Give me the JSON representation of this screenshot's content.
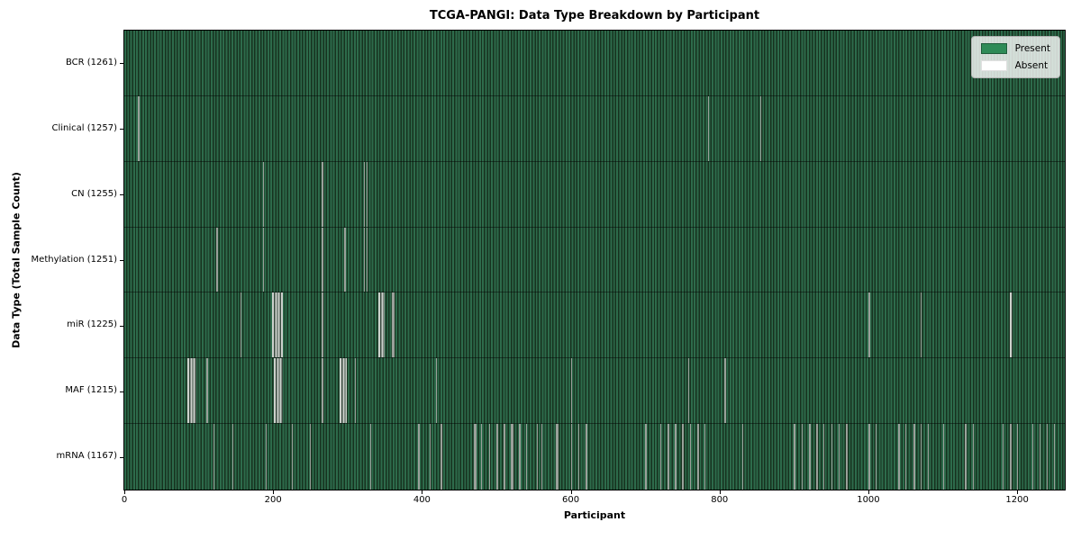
{
  "chart_data": {
    "type": "heatmap",
    "title": "TCGA-PANGI: Data Type Breakdown by Participant",
    "xlabel": "Participant",
    "ylabel": "Data Type (Total Sample Count)",
    "x_ticks": [
      0,
      200,
      400,
      600,
      800,
      1000,
      1200
    ],
    "x_range": [
      0,
      1264
    ],
    "n_participants": 1261,
    "present_color": "#2e8b57",
    "absent_color": "#ffffff",
    "grid": false,
    "legend_position": "upper right",
    "legend": [
      {
        "label": "Present",
        "color": "#2e8b57"
      },
      {
        "label": "Absent",
        "color": "#ffffff"
      }
    ],
    "rows": [
      {
        "label": "BCR (1261)",
        "data_type": "BCR",
        "present_count": 1261,
        "absent_ranges": []
      },
      {
        "label": "Clinical (1257)",
        "data_type": "Clinical",
        "present_count": 1257,
        "absent_ranges": [
          [
            18,
            19
          ],
          [
            784,
            784
          ],
          [
            855,
            855
          ]
        ]
      },
      {
        "label": "CN (1255)",
        "data_type": "CN",
        "present_count": 1255,
        "absent_ranges": [
          [
            186,
            187
          ],
          [
            265,
            266
          ],
          [
            322,
            322
          ],
          [
            326,
            326
          ]
        ]
      },
      {
        "label": "Methylation (1251)",
        "data_type": "Methylation",
        "present_count": 1251,
        "absent_ranges": [
          [
            124,
            125
          ],
          [
            186,
            187
          ],
          [
            265,
            266
          ],
          [
            296,
            297
          ],
          [
            322,
            322
          ],
          [
            326,
            326
          ]
        ]
      },
      {
        "label": "miR (1225)",
        "data_type": "miR",
        "present_count": 1225,
        "absent_ranges": [
          [
            156,
            156
          ],
          [
            199,
            212
          ],
          [
            265,
            266
          ],
          [
            342,
            349
          ],
          [
            360,
            362
          ],
          [
            1000,
            1001
          ],
          [
            1070,
            1071
          ],
          [
            1190,
            1193
          ]
        ]
      },
      {
        "label": "MAF (1215)",
        "data_type": "MAF",
        "present_count": 1215,
        "absent_ranges": [
          [
            85,
            96
          ],
          [
            110,
            112
          ],
          [
            201,
            212
          ],
          [
            265,
            266
          ],
          [
            289,
            298
          ],
          [
            310,
            310
          ],
          [
            419,
            419
          ],
          [
            601,
            601
          ],
          [
            758,
            758
          ],
          [
            806,
            808
          ]
        ]
      },
      {
        "label": "mRNA (1167)",
        "data_type": "mRNA",
        "present_count": 1167,
        "absent_ranges": [
          [
            120,
            120
          ],
          [
            145,
            145
          ],
          [
            190,
            190
          ],
          [
            225,
            226
          ],
          [
            250,
            250
          ],
          [
            330,
            330
          ],
          [
            395,
            396
          ],
          [
            410,
            411
          ],
          [
            425,
            426
          ],
          [
            470,
            472
          ],
          [
            480,
            480
          ],
          [
            490,
            491
          ],
          [
            500,
            501
          ],
          [
            510,
            511
          ],
          [
            520,
            522
          ],
          [
            530,
            532
          ],
          [
            540,
            540
          ],
          [
            555,
            555
          ],
          [
            560,
            561
          ],
          [
            580,
            582
          ],
          [
            600,
            601
          ],
          [
            610,
            610
          ],
          [
            620,
            621
          ],
          [
            700,
            701
          ],
          [
            720,
            720
          ],
          [
            730,
            731
          ],
          [
            740,
            741
          ],
          [
            750,
            751
          ],
          [
            760,
            760
          ],
          [
            770,
            771
          ],
          [
            780,
            780
          ],
          [
            830,
            830
          ],
          [
            900,
            901
          ],
          [
            910,
            910
          ],
          [
            920,
            921
          ],
          [
            930,
            931
          ],
          [
            940,
            940
          ],
          [
            950,
            951
          ],
          [
            960,
            960
          ],
          [
            970,
            971
          ],
          [
            1000,
            1001
          ],
          [
            1010,
            1010
          ],
          [
            1040,
            1041
          ],
          [
            1050,
            1050
          ],
          [
            1060,
            1062
          ],
          [
            1070,
            1071
          ],
          [
            1080,
            1080
          ],
          [
            1100,
            1100
          ],
          [
            1130,
            1131
          ],
          [
            1140,
            1140
          ],
          [
            1180,
            1181
          ],
          [
            1190,
            1192
          ],
          [
            1200,
            1200
          ],
          [
            1220,
            1220
          ],
          [
            1230,
            1230
          ],
          [
            1240,
            1240
          ],
          [
            1250,
            1250
          ]
        ]
      }
    ]
  }
}
